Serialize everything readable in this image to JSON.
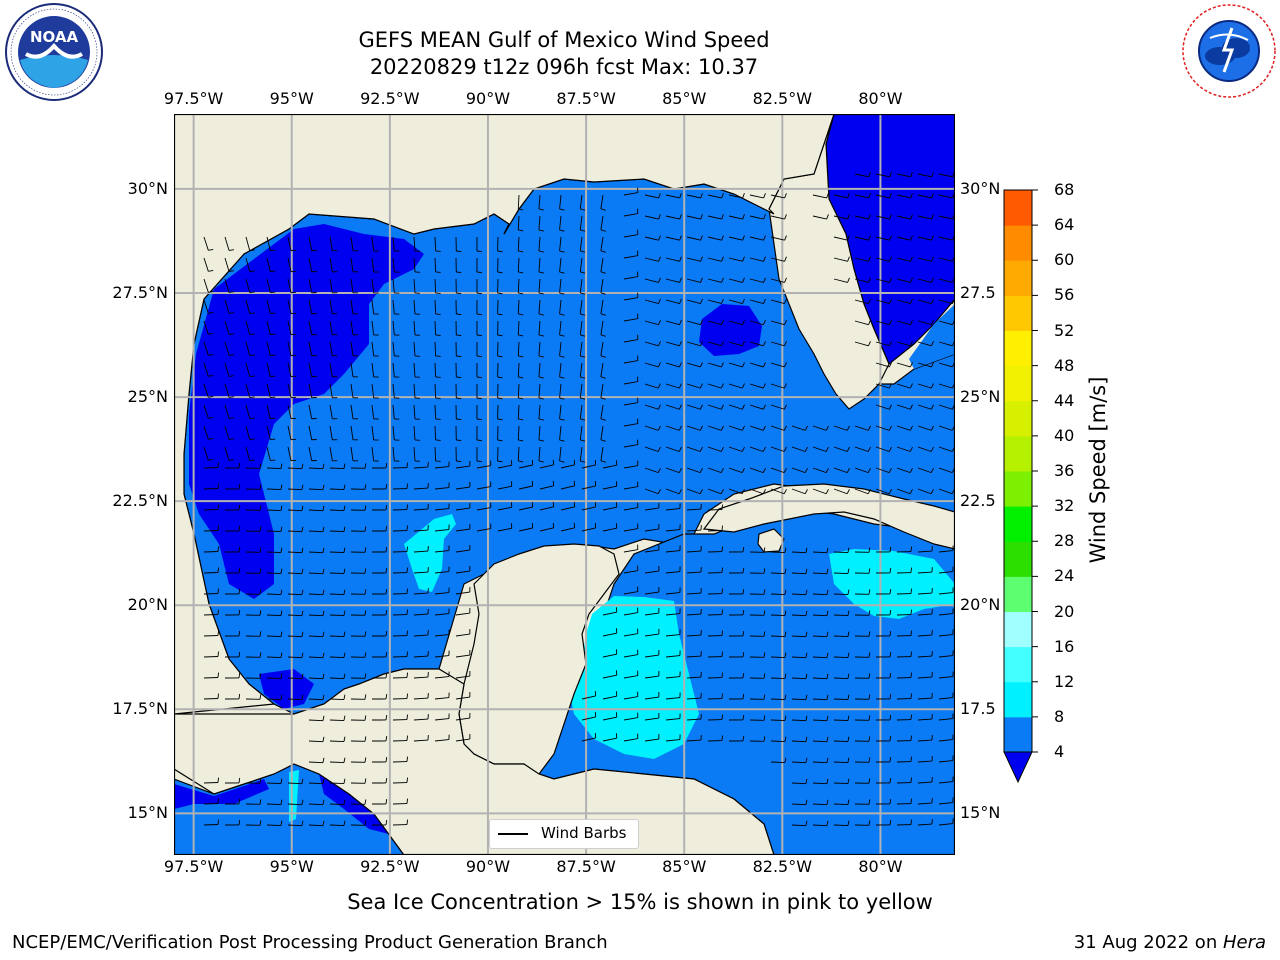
{
  "title": {
    "line1": "GEFS MEAN Gulf of Mexico Wind Speed",
    "line2": "20220829 t12z 096h fcst   Max: 10.37"
  },
  "logos": {
    "left": {
      "name": "noaa-logo",
      "text": "NOAA",
      "ring_text": "NATIONAL OCEANIC AND ATMOSPHERIC ADMINISTRATION · U.S. DEPARTMENT OF COMMERCE"
    },
    "right": {
      "name": "nws-logo",
      "ring_text": "NATIONAL WEATHER SERVICE"
    }
  },
  "map": {
    "lon_labels": [
      "97.5°W",
      "95°W",
      "92.5°W",
      "90°W",
      "87.5°W",
      "85°W",
      "82.5°W",
      "80°W"
    ],
    "lat_labels_left": [
      "30°N",
      "27.5°N",
      "25°N",
      "22.5°N",
      "20°N",
      "17.5°N",
      "15°N"
    ],
    "lat_labels_right": [
      "30°N",
      "27.5",
      "25°N",
      "22.5",
      "20°N",
      "17.5",
      "15°N"
    ],
    "extent": {
      "lon_min": -98.0,
      "lon_max": -78.1,
      "lat_min": 14.0,
      "lat_max": 31.8
    },
    "grid": true
  },
  "legend": {
    "label": "Wind Barbs",
    "placement": "lower-center"
  },
  "colorbar": {
    "title": "Wind Speed [m/s]",
    "ticks": [
      "4",
      "8",
      "12",
      "16",
      "20",
      "24",
      "28",
      "32",
      "36",
      "40",
      "44",
      "48",
      "52",
      "56",
      "60",
      "64",
      "68"
    ],
    "colors": [
      "#0a7af5",
      "#00f0ff",
      "#44ffff",
      "#a0ffff",
      "#5dff71",
      "#2ddf00",
      "#00f000",
      "#7cf000",
      "#b4f000",
      "#d7f000",
      "#f0f000",
      "#fff000",
      "#ffc800",
      "#ffaa00",
      "#ff8c00",
      "#ff5a00",
      "#ff3700",
      "#ff0000"
    ],
    "under_color": "#0000f0"
  },
  "colors": {
    "land": "#efeedd",
    "ocean_default": "#0a7af5",
    "low_wind": "#0000f0",
    "high_wind": "#00f0ff",
    "gridline": "#b2b2b2"
  },
  "caption": "Sea Ice Concentration > 15% is shown in pink to yellow",
  "footer": {
    "left": "NCEP/EMC/Verification Post Processing Product Generation Branch",
    "right_date": "31 Aug 2022 on ",
    "right_host": "Hera"
  }
}
